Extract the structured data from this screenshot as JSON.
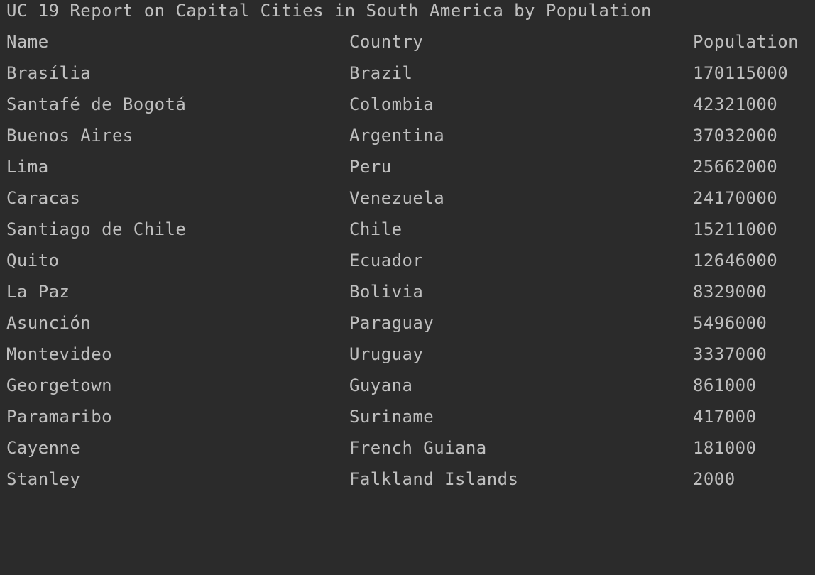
{
  "report": {
    "title": "UC 19 Report on Capital Cities in South America by Population",
    "headers": {
      "name": "Name",
      "country": "Country",
      "population": "Population"
    },
    "rows": [
      {
        "name": "Brasília",
        "country": "Brazil",
        "population": "170115000"
      },
      {
        "name": "Santafé de Bogotá",
        "country": "Colombia",
        "population": "42321000"
      },
      {
        "name": "Buenos Aires",
        "country": "Argentina",
        "population": "37032000"
      },
      {
        "name": "Lima",
        "country": "Peru",
        "population": "25662000"
      },
      {
        "name": "Caracas",
        "country": "Venezuela",
        "population": "24170000"
      },
      {
        "name": "Santiago de Chile",
        "country": "Chile",
        "population": "15211000"
      },
      {
        "name": "Quito",
        "country": "Ecuador",
        "population": "12646000"
      },
      {
        "name": "La Paz",
        "country": "Bolivia",
        "population": "8329000"
      },
      {
        "name": "Asunción",
        "country": "Paraguay",
        "population": "5496000"
      },
      {
        "name": "Montevideo",
        "country": "Uruguay",
        "population": "3337000"
      },
      {
        "name": "Georgetown",
        "country": "Guyana",
        "population": "861000"
      },
      {
        "name": "Paramaribo",
        "country": "Suriname",
        "population": "417000"
      },
      {
        "name": "Cayenne",
        "country": "French Guiana",
        "population": "181000"
      },
      {
        "name": "Stanley",
        "country": "Falkland Islands",
        "population": "2000"
      }
    ]
  }
}
